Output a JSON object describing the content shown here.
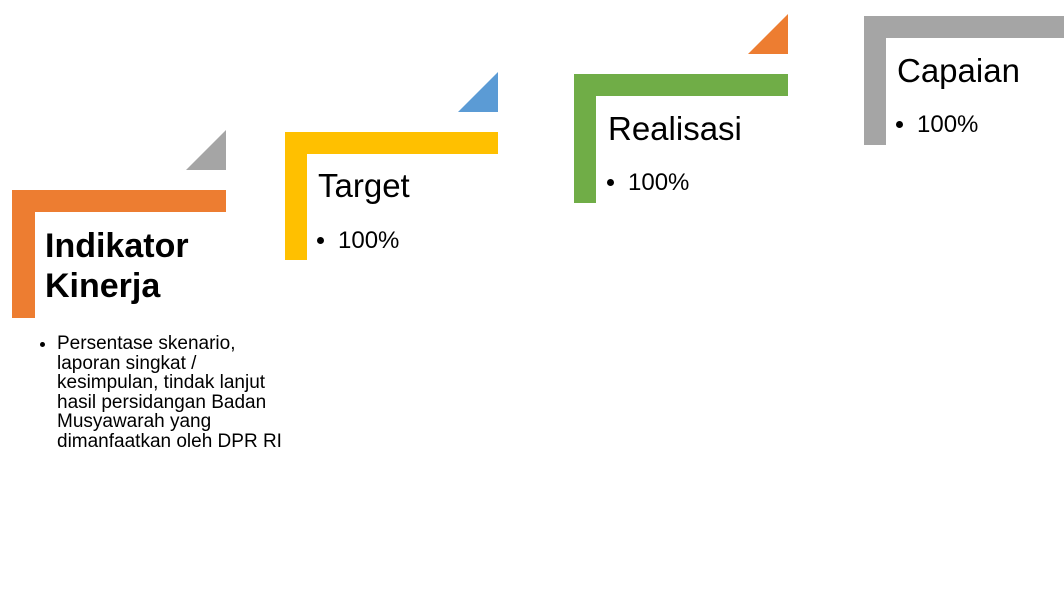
{
  "steps": [
    {
      "title": "Indikator Kinerja",
      "bullets": [
        "Persentase skenario, laporan singkat / kesimpulan, tindak lanjut hasil persidangan Badan Musyawarah yang dimanfaatkan oleh DPR RI"
      ]
    },
    {
      "title": "Target",
      "bullets": [
        "100%"
      ]
    },
    {
      "title": "Realisasi",
      "bullets": [
        "100%"
      ]
    },
    {
      "title": "Capaian",
      "bullets": [
        "100%"
      ]
    }
  ]
}
